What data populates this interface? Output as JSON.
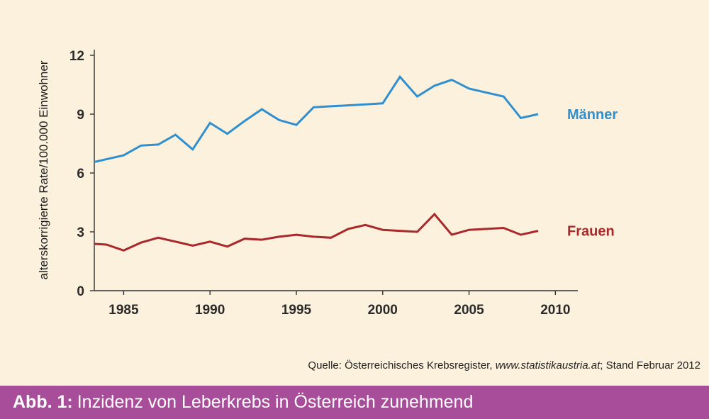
{
  "chart_data": {
    "type": "line",
    "ylabel": "alterskorrigierte Rate/100.000 Einwohner",
    "xlabel": "",
    "xlim": [
      1983.3,
      2011.3
    ],
    "ylim": [
      0,
      12
    ],
    "xticks": [
      1985,
      1990,
      1995,
      2000,
      2005,
      2010
    ],
    "yticks": [
      0,
      3,
      6,
      9,
      12
    ],
    "grid": false,
    "series": [
      {
        "name": "Männer",
        "color": "#2f8fcf",
        "x": [
          1983,
          1984,
          1985,
          1986,
          1987,
          1988,
          1989,
          1990,
          1991,
          1992,
          1993,
          1994,
          1995,
          1996,
          1997,
          1998,
          1999,
          2000,
          2001,
          2002,
          2003,
          2004,
          2005,
          2006,
          2007,
          2008,
          2009
        ],
        "values": [
          6.5,
          6.7,
          6.9,
          7.4,
          7.45,
          7.95,
          7.2,
          8.55,
          8.0,
          8.65,
          9.25,
          8.7,
          8.45,
          9.35,
          9.4,
          9.45,
          9.5,
          9.55,
          10.9,
          9.9,
          10.45,
          10.75,
          10.3,
          10.1,
          9.9,
          8.8,
          9.0
        ]
      },
      {
        "name": "Frauen",
        "color": "#a8282c",
        "x": [
          1983,
          1984,
          1985,
          1986,
          1987,
          1988,
          1989,
          1990,
          1991,
          1992,
          1993,
          1994,
          1995,
          1996,
          1997,
          1998,
          1999,
          2000,
          2001,
          2002,
          2003,
          2004,
          2005,
          2006,
          2007,
          2008,
          2009
        ],
        "values": [
          2.4,
          2.35,
          2.05,
          2.45,
          2.7,
          2.5,
          2.3,
          2.5,
          2.25,
          2.65,
          2.6,
          2.75,
          2.85,
          2.75,
          2.7,
          3.15,
          3.35,
          3.1,
          3.05,
          3.0,
          3.9,
          2.85,
          3.1,
          3.15,
          3.2,
          2.85,
          3.05
        ]
      }
    ]
  },
  "source": {
    "prefix": "Quelle: Österreichisches Krebsregister, ",
    "url": "www.statistikaustria.at",
    "suffix": "; Stand Februar 2012"
  },
  "caption": {
    "prefix": "Abb. 1:",
    "text": "Inzidenz von Leberkrebs in Österreich zunehmend"
  }
}
